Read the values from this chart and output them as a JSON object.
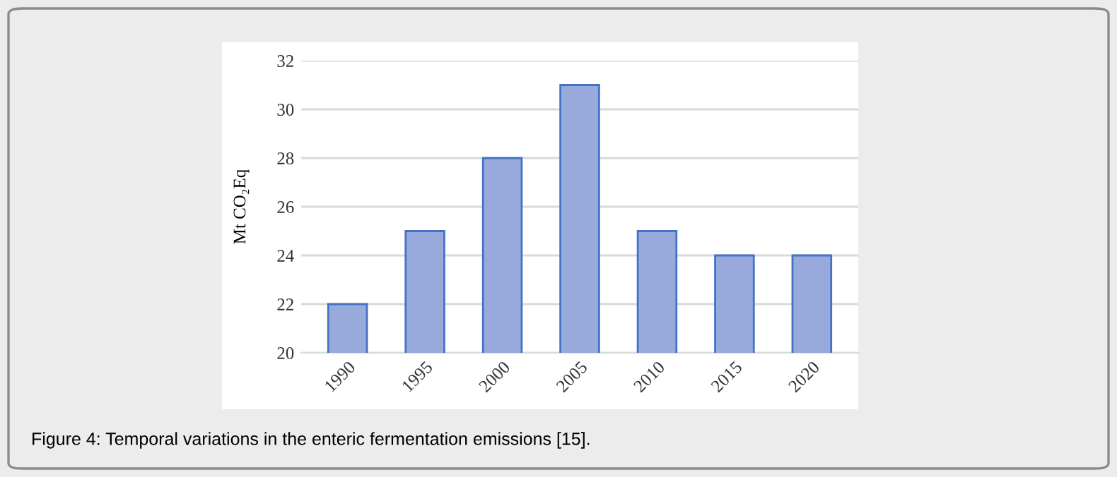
{
  "chart_data": {
    "type": "bar",
    "ylabel": "Mt CO₂Eq",
    "categories": [
      "1990",
      "1995",
      "2000",
      "2005",
      "2010",
      "2015",
      "2020"
    ],
    "values": [
      22,
      25,
      28,
      31,
      25,
      24,
      24
    ],
    "color": "#98aadc",
    "ylim": [
      20,
      32
    ],
    "yticks": [
      20,
      22,
      24,
      26,
      28,
      30,
      32
    ],
    "grid": "y",
    "annotations": [
      "Figure 4: Temporal variations in the enteric fermentation emissions [15]."
    ]
  }
}
